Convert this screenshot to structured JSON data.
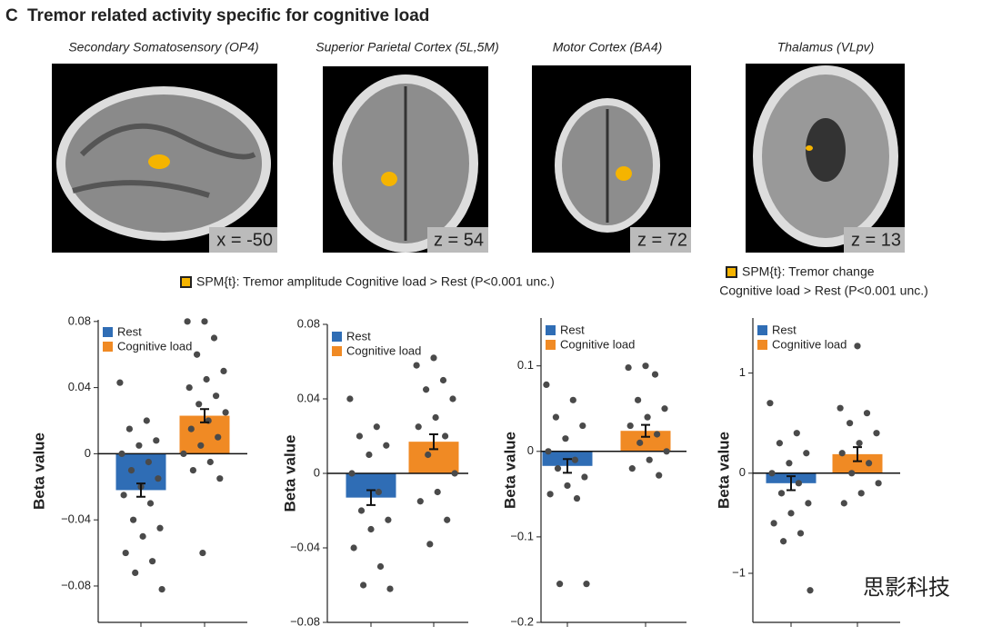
{
  "figure_title": {
    "letter": "C",
    "text": "Tremor related activity specific for cognitive load"
  },
  "brains": [
    {
      "label": "Secondary Somatosensory (OP4)",
      "slice": "x = -50"
    },
    {
      "label": "Superior Parietal Cortex (5L,5M)",
      "slice": "z = 54"
    },
    {
      "label": "Motor Cortex (BA4)",
      "slice": "z = 72"
    },
    {
      "label": "Thalamus (VLpv)",
      "slice": "z = 13"
    }
  ],
  "spm_legends": [
    {
      "lines": [
        "SPM{t}: Tremor amplitude Cognitive load > Rest (P<0.001 unc.)"
      ]
    },
    {
      "lines": [
        "SPM{t}: Tremor change",
        "Cognitive load > Rest (P<0.001 unc.)"
      ]
    }
  ],
  "watermark": "思影科技",
  "chart_data": [
    {
      "type": "bar",
      "ylabel": "Beta value",
      "ylim": [
        -0.102,
        0.081
      ],
      "yticks": [
        0.08,
        0.04,
        0,
        {
          "value": -0.04,
          "label": "−0.04"
        },
        {
          "value": -0.08,
          "label": "−0.08"
        }
      ],
      "series": [
        {
          "name": "Rest",
          "color": "#2f6db5",
          "values": [
            -0.022
          ],
          "errors": [
            0.004
          ],
          "points": [
            0.043,
            0.02,
            0.015,
            0.008,
            0.005,
            0,
            -0.005,
            -0.01,
            -0.015,
            -0.02,
            -0.025,
            -0.03,
            -0.04,
            -0.045,
            -0.05,
            -0.06,
            -0.065,
            -0.072,
            -0.082
          ]
        },
        {
          "name": "Cognitive load",
          "color": "#f08a24",
          "values": [
            0.023
          ],
          "errors": [
            0.004
          ],
          "points": [
            0.08,
            0.08,
            0.07,
            0.06,
            0.05,
            0.045,
            0.04,
            0.035,
            0.03,
            0.025,
            0.02,
            0.015,
            0.01,
            0.005,
            0,
            -0.005,
            -0.01,
            -0.015,
            -0.06
          ]
        }
      ]
    },
    {
      "type": "bar",
      "ylabel": "Beta value",
      "ylim": [
        -0.08,
        0.08
      ],
      "yticks": [
        0.08,
        0.04,
        0,
        {
          "value": -0.04,
          "label": "−0.04"
        },
        {
          "value": -0.08,
          "label": "−0.08"
        }
      ],
      "series": [
        {
          "name": "Rest",
          "color": "#2f6db5",
          "values": [
            -0.013
          ],
          "errors": [
            0.004
          ],
          "points": [
            0.04,
            0.025,
            0.02,
            0.015,
            0.01,
            0,
            -0.01,
            -0.02,
            -0.025,
            -0.03,
            -0.04,
            -0.05,
            -0.06,
            -0.062
          ]
        },
        {
          "name": "Cognitive load",
          "color": "#f08a24",
          "values": [
            0.017
          ],
          "errors": [
            0.004
          ],
          "points": [
            0.062,
            0.058,
            0.05,
            0.045,
            0.04,
            0.03,
            0.025,
            0.02,
            0.01,
            0,
            -0.01,
            -0.015,
            -0.025,
            -0.038
          ]
        }
      ]
    },
    {
      "type": "bar",
      "ylabel": "Beta value",
      "ylim": [
        -0.2,
        0.156
      ],
      "yticks": [
        0.1,
        0,
        {
          "value": -0.1,
          "label": "−0.1"
        },
        {
          "value": -0.2,
          "label": "−0.2"
        }
      ],
      "series": [
        {
          "name": "Rest",
          "color": "#2f6db5",
          "values": [
            -0.017
          ],
          "errors": [
            0.008
          ],
          "points": [
            0.078,
            0.06,
            0.04,
            0.03,
            0.015,
            0,
            -0.01,
            -0.02,
            -0.03,
            -0.04,
            -0.05,
            -0.055,
            -0.155,
            -0.155
          ]
        },
        {
          "name": "Cognitive load",
          "color": "#f08a24",
          "values": [
            0.024
          ],
          "errors": [
            0.007
          ],
          "points": [
            0.1,
            0.098,
            0.09,
            0.06,
            0.05,
            0.04,
            0.03,
            0.02,
            0.01,
            0,
            -0.01,
            -0.02,
            -0.028
          ]
        }
      ]
    },
    {
      "type": "bar",
      "ylabel": "Beta value",
      "ylim": [
        -1.49,
        1.55
      ],
      "yticks": [
        1,
        0,
        {
          "value": -1,
          "label": "−1"
        }
      ],
      "series": [
        {
          "name": "Rest",
          "color": "#2f6db5",
          "values": [
            -0.1
          ],
          "errors": [
            0.07
          ],
          "points": [
            0.7,
            0.4,
            0.3,
            0.2,
            0.1,
            0,
            -0.1,
            -0.2,
            -0.3,
            -0.4,
            -0.5,
            -0.6,
            -0.68,
            -1.17
          ]
        },
        {
          "name": "Cognitive load",
          "color": "#f08a24",
          "values": [
            0.19
          ],
          "errors": [
            0.07
          ],
          "points": [
            1.27,
            0.65,
            0.6,
            0.5,
            0.4,
            0.3,
            0.2,
            0.1,
            0,
            -0.1,
            -0.2,
            -0.3
          ]
        }
      ]
    }
  ]
}
